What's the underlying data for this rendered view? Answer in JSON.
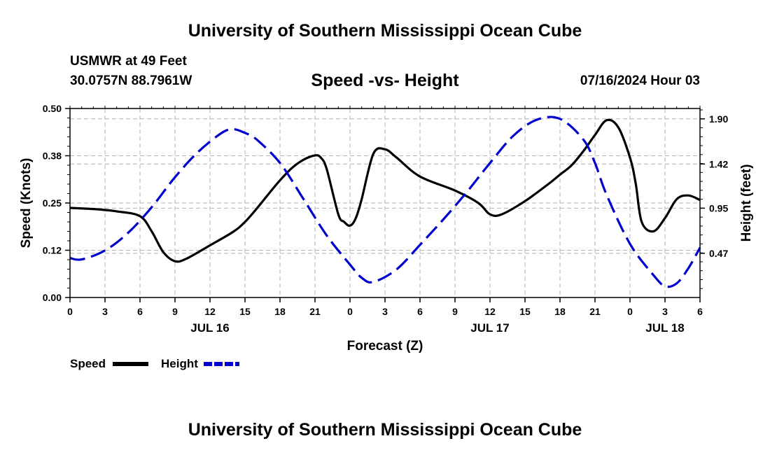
{
  "header": {
    "title": "University of Southern Mississippi Ocean Cube",
    "station": "USMWR at 49 Feet",
    "coords": "30.0757N  88.7961W",
    "subtitle": "Speed -vs- Height",
    "datetime": "07/16/2024 Hour 03"
  },
  "footer": {
    "title": "University of Southern Mississippi Ocean Cube"
  },
  "chart_data": {
    "type": "line",
    "title": "Speed -vs- Height",
    "xlabel": "Forecast (Z)",
    "ylabel": "Speed (Knots)",
    "y2label": "Height (feet)",
    "xlim": [
      0,
      54
    ],
    "ylim": [
      0,
      0.5
    ],
    "y2lim": [
      0,
      2.01
    ],
    "x_ticks": [
      0,
      3,
      6,
      9,
      12,
      15,
      18,
      21,
      24,
      27,
      30,
      33,
      36,
      39,
      42,
      45,
      48,
      51,
      54
    ],
    "x_tick_labels": [
      "0",
      "3",
      "6",
      "9",
      "12",
      "15",
      "18",
      "21",
      "0",
      "3",
      "6",
      "9",
      "12",
      "15",
      "18",
      "21",
      "0",
      "3",
      "6"
    ],
    "date_labels": [
      {
        "label": "JUL 16",
        "x": 12
      },
      {
        "label": "JUL 17",
        "x": 36
      },
      {
        "label": "JUL 18",
        "x": 51
      }
    ],
    "y_ticks": [
      0,
      0.125,
      0.25,
      0.375,
      0.5
    ],
    "y_tick_labels": [
      "0.00",
      "0.12",
      "0.25",
      "0.38",
      "0.50"
    ],
    "y2_ticks": [
      0.47,
      0.95,
      1.42,
      1.9
    ],
    "y2_tick_labels": [
      "0.47",
      "0.95",
      "1.42",
      "1.90"
    ],
    "grid": true,
    "legend": {
      "position": "bottom-left",
      "entries": [
        "Speed",
        "Height"
      ]
    },
    "series": [
      {
        "name": "Speed",
        "axis": "left",
        "color": "#000000",
        "dash": "solid",
        "x": [
          0,
          2,
          4,
          6,
          7,
          8,
          9,
          10,
          12,
          14,
          15,
          16,
          17,
          18,
          19,
          20,
          21,
          21.5,
          22,
          23,
          23.5,
          24,
          24.5,
          25,
          26,
          27,
          28,
          30,
          33,
          35,
          36,
          37,
          39,
          41,
          42,
          43,
          44,
          45,
          46,
          47,
          48,
          48.5,
          49,
          50,
          51,
          52,
          53,
          54
        ],
        "y": [
          0.237,
          0.234,
          0.228,
          0.215,
          0.175,
          0.12,
          0.096,
          0.103,
          0.138,
          0.174,
          0.2,
          0.235,
          0.273,
          0.31,
          0.342,
          0.364,
          0.376,
          0.37,
          0.34,
          0.22,
          0.2,
          0.19,
          0.21,
          0.26,
          0.38,
          0.392,
          0.37,
          0.32,
          0.283,
          0.25,
          0.22,
          0.22,
          0.255,
          0.3,
          0.325,
          0.35,
          0.387,
          0.43,
          0.469,
          0.45,
          0.37,
          0.3,
          0.2,
          0.175,
          0.21,
          0.26,
          0.27,
          0.258
        ]
      },
      {
        "name": "Height",
        "axis": "right",
        "color": "#0000cc",
        "dash": "dashed",
        "x": [
          0,
          1,
          3,
          5,
          7,
          9,
          11,
          13,
          14,
          15,
          16,
          18,
          20,
          22,
          24,
          25,
          26,
          28,
          30,
          32,
          34,
          36,
          38,
          40,
          42,
          44,
          45,
          46,
          48,
          50,
          51,
          52,
          53,
          54
        ],
        "y": [
          0.42,
          0.405,
          0.5,
          0.69,
          0.96,
          1.28,
          1.55,
          1.75,
          1.79,
          1.75,
          1.68,
          1.43,
          1.05,
          0.66,
          0.35,
          0.21,
          0.165,
          0.3,
          0.56,
          0.83,
          1.12,
          1.43,
          1.72,
          1.89,
          1.9,
          1.68,
          1.43,
          1.09,
          0.57,
          0.24,
          0.12,
          0.15,
          0.31,
          0.53
        ]
      }
    ]
  }
}
